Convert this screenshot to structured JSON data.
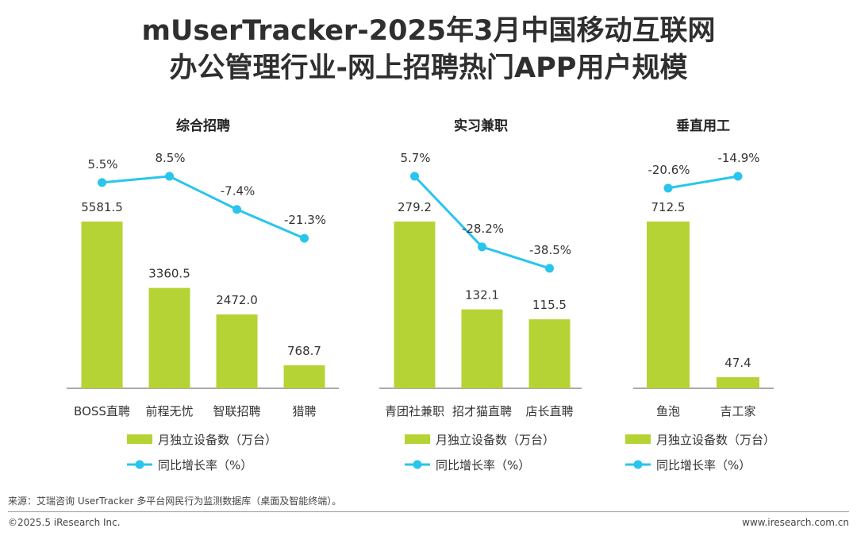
{
  "title_line1": "mUserTracker-2025年3月中国移动互联网",
  "title_line2": "办公管理行业-网上招聘热门APP用户规模",
  "colors": {
    "bar": "#b5d334",
    "line": "#29c5ec",
    "axis": "#555555",
    "text": "#333333"
  },
  "legend": {
    "bar_label": "月独立设备数（万台）",
    "line_label": "同比增长率（%）"
  },
  "chart_data": [
    {
      "type": "bar",
      "title": "综合招聘",
      "categories": [
        "BOSS直聘",
        "前程无忧",
        "智联招聘",
        "猎聘"
      ],
      "bar_labels": [
        "5581.5",
        "3360.5",
        "2472.0",
        "768.7"
      ],
      "growth_labels": [
        "5.5%",
        "8.5%",
        "-7.4%",
        "-21.3%"
      ],
      "series": [
        {
          "name": "月独立设备数（万台）",
          "type": "bar",
          "values": [
            5581.5,
            3360.5,
            2472.0,
            768.7
          ]
        },
        {
          "name": "同比增长率（%）",
          "type": "line",
          "values": [
            5.5,
            8.5,
            -7.4,
            -21.3
          ]
        }
      ]
    },
    {
      "type": "bar",
      "title": "实习兼职",
      "categories": [
        "青团社兼职",
        "招才猫直聘",
        "店长直聘"
      ],
      "bar_labels": [
        "279.2",
        "132.1",
        "115.5"
      ],
      "growth_labels": [
        "5.7%",
        "-28.2%",
        "-38.5%"
      ],
      "series": [
        {
          "name": "月独立设备数（万台）",
          "type": "bar",
          "values": [
            279.2,
            132.1,
            115.5
          ]
        },
        {
          "name": "同比增长率（%）",
          "type": "line",
          "values": [
            5.7,
            -28.2,
            -38.5
          ]
        }
      ]
    },
    {
      "type": "bar",
      "title": "垂直用工",
      "categories": [
        "鱼泡",
        "吉工家"
      ],
      "bar_labels": [
        "712.5",
        "47.4"
      ],
      "growth_labels": [
        "-20.6%",
        "-14.9%"
      ],
      "series": [
        {
          "name": "月独立设备数（万台）",
          "type": "bar",
          "values": [
            712.5,
            47.4
          ]
        },
        {
          "name": "同比增长率（%）",
          "type": "line",
          "values": [
            -20.6,
            -14.9
          ]
        }
      ]
    }
  ],
  "source": "来源：艾瑞咨询 UserTracker 多平台网民行为监测数据库（桌面及智能终端）。",
  "copyright": "©2025.5 iResearch Inc.",
  "website": "www.iresearch.com.cn"
}
